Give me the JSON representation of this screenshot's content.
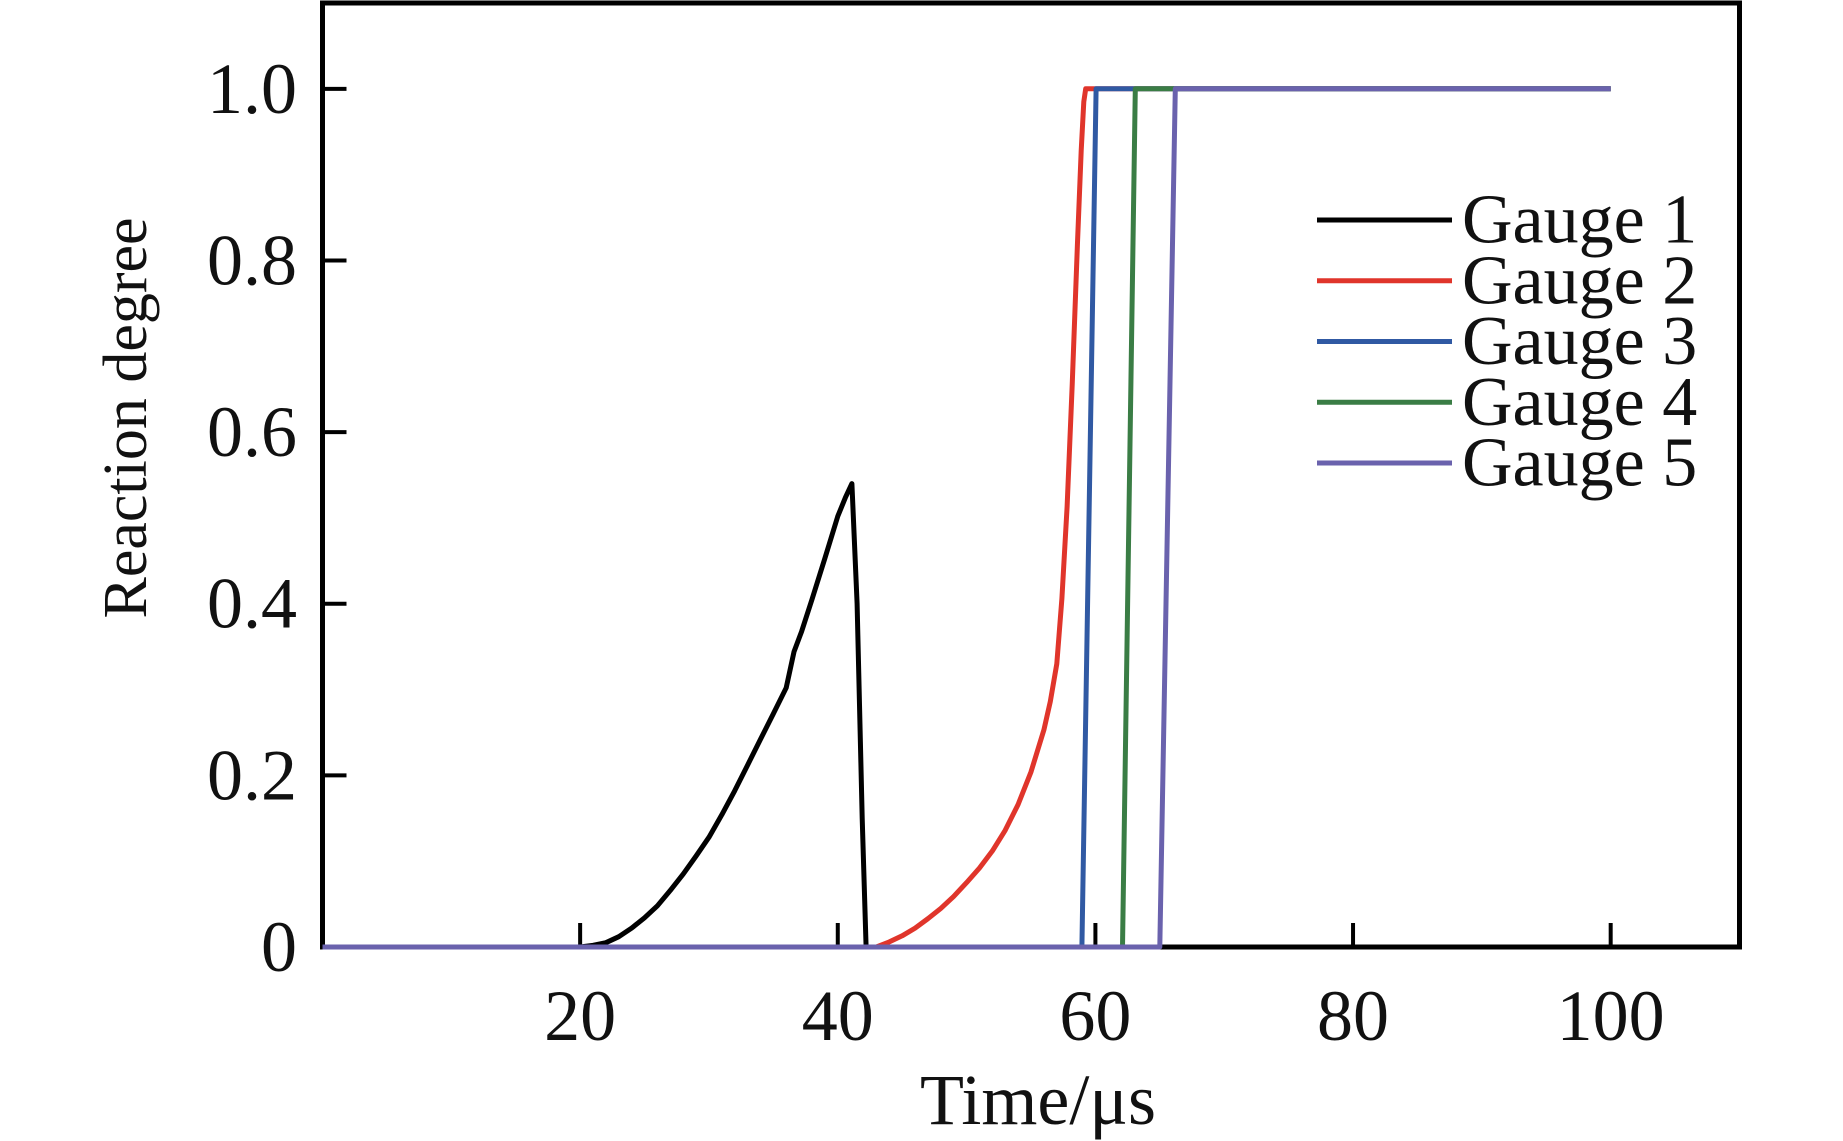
{
  "chart_data": {
    "type": "line",
    "title": "",
    "xlabel": "Time/μs",
    "ylabel": "Reaction degree",
    "xlim": [
      0,
      110
    ],
    "ylim": [
      0,
      1.1
    ],
    "grid": false,
    "legend_position": "upper right inside",
    "x_ticks": {
      "values": [
        20,
        40,
        60,
        80,
        100
      ],
      "labels": [
        "20",
        "40",
        "60",
        "80",
        "100"
      ]
    },
    "y_ticks": {
      "values": [
        0,
        0.2,
        0.4,
        0.6,
        0.8,
        1.0
      ],
      "labels": [
        "0",
        "0.2",
        "0.4",
        "0.6",
        "0.8",
        "1.0"
      ]
    },
    "axis_color": "#000000",
    "text_color": "#111111",
    "series": [
      {
        "name": "Gauge 1",
        "color": "#000000",
        "points": [
          [
            0,
            0
          ],
          [
            15,
            0
          ],
          [
            20,
            0
          ],
          [
            21,
            0.002
          ],
          [
            22,
            0.005
          ],
          [
            23,
            0.012
          ],
          [
            24,
            0.022
          ],
          [
            25,
            0.034
          ],
          [
            26,
            0.048
          ],
          [
            27,
            0.066
          ],
          [
            28,
            0.085
          ],
          [
            29,
            0.106
          ],
          [
            30,
            0.128
          ],
          [
            31,
            0.154
          ],
          [
            32,
            0.182
          ],
          [
            33,
            0.212
          ],
          [
            34,
            0.242
          ],
          [
            35,
            0.272
          ],
          [
            36,
            0.302
          ],
          [
            36.6,
            0.344
          ],
          [
            37.2,
            0.368
          ],
          [
            38,
            0.405
          ],
          [
            39,
            0.453
          ],
          [
            40,
            0.502
          ],
          [
            40.6,
            0.524
          ],
          [
            41.1,
            0.54
          ],
          [
            41.5,
            0.4
          ],
          [
            41.9,
            0.15
          ],
          [
            42.2,
            0
          ],
          [
            50,
            0
          ],
          [
            65,
            0
          ],
          [
            80,
            0
          ],
          [
            100,
            0
          ]
        ]
      },
      {
        "name": "Gauge 2",
        "color": "#e0352b",
        "points": [
          [
            0,
            0
          ],
          [
            30,
            0
          ],
          [
            43,
            0
          ],
          [
            44,
            0.006
          ],
          [
            45,
            0.013
          ],
          [
            46,
            0.022
          ],
          [
            47,
            0.033
          ],
          [
            48,
            0.045
          ],
          [
            49,
            0.059
          ],
          [
            50,
            0.075
          ],
          [
            51,
            0.092
          ],
          [
            52,
            0.112
          ],
          [
            53,
            0.136
          ],
          [
            54,
            0.166
          ],
          [
            55,
            0.204
          ],
          [
            56,
            0.253
          ],
          [
            56.5,
            0.286
          ],
          [
            57,
            0.33
          ],
          [
            57.4,
            0.406
          ],
          [
            57.8,
            0.513
          ],
          [
            58.2,
            0.655
          ],
          [
            58.6,
            0.818
          ],
          [
            58.9,
            0.928
          ],
          [
            59.1,
            0.985
          ],
          [
            59.25,
            1
          ],
          [
            70,
            1
          ],
          [
            100,
            1
          ]
        ]
      },
      {
        "name": "Gauge 3",
        "color": "#3059a3",
        "points": [
          [
            0,
            0
          ],
          [
            58.95,
            0
          ],
          [
            60.05,
            1
          ],
          [
            100,
            1
          ]
        ]
      },
      {
        "name": "Gauge 4",
        "color": "#3a7d45",
        "points": [
          [
            0,
            0
          ],
          [
            62.1,
            0
          ],
          [
            63.1,
            1
          ],
          [
            100,
            1
          ]
        ]
      },
      {
        "name": "Gauge 5",
        "color": "#6a62ad",
        "points": [
          [
            0,
            0
          ],
          [
            65,
            0
          ],
          [
            66.2,
            1
          ],
          [
            100,
            1
          ]
        ]
      }
    ],
    "legend": [
      "Gauge 1",
      "Gauge 2",
      "Gauge 3",
      "Gauge 4",
      "Gauge 5"
    ]
  }
}
